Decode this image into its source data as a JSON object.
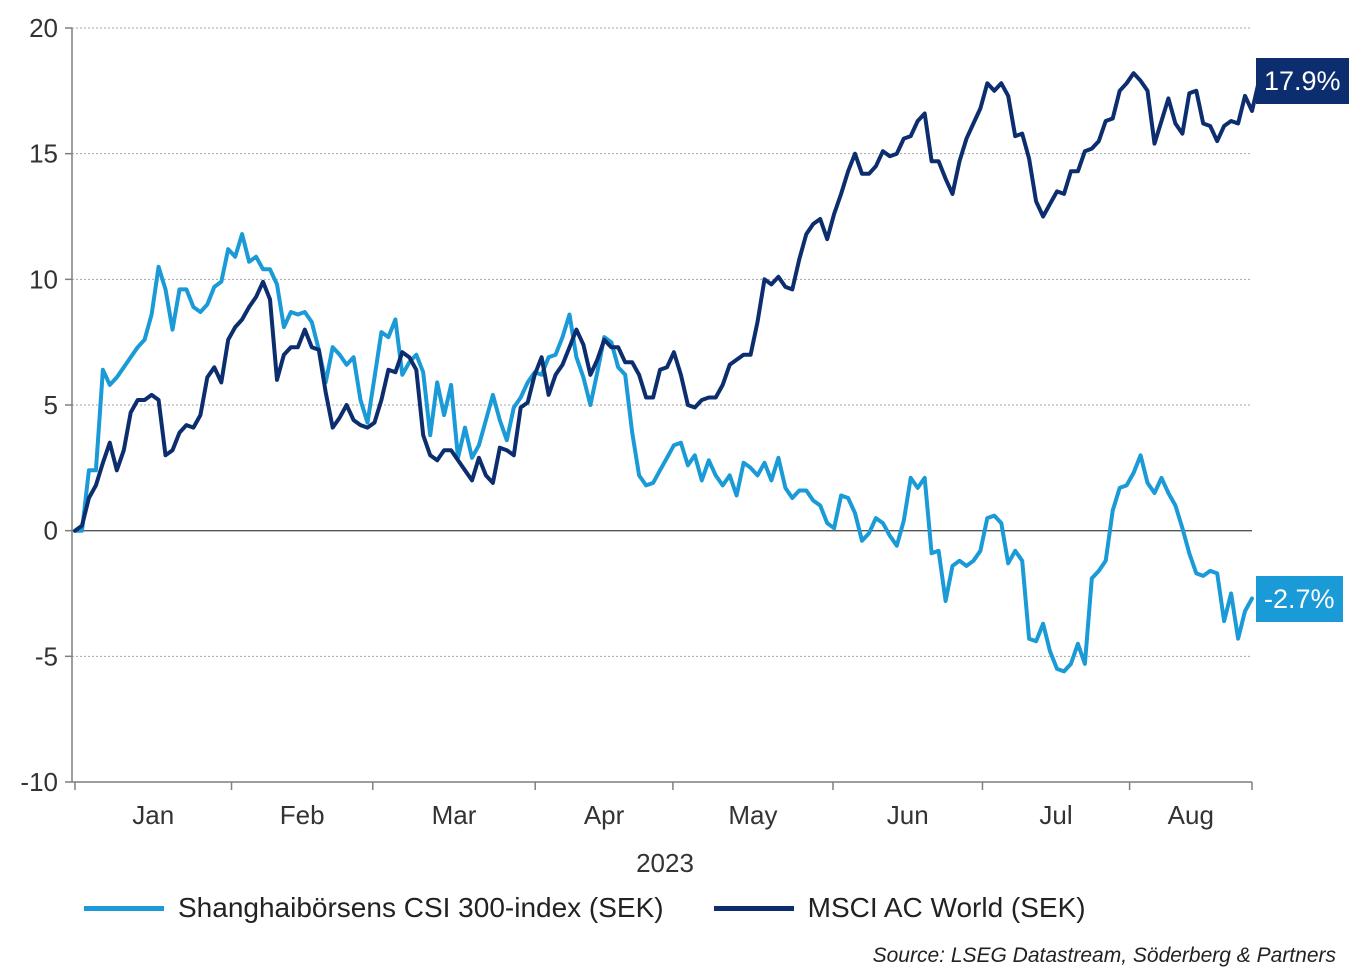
{
  "chart_data": {
    "type": "line",
    "xlabel": "2023",
    "ylabel": "",
    "ylim": [
      -10,
      20
    ],
    "yticks": [
      "-10",
      "-5",
      "0",
      "5",
      "10",
      "15",
      "20"
    ],
    "month_labels": [
      "Jan",
      "Feb",
      "Mar",
      "Apr",
      "May",
      "Jun",
      "Jul",
      "Aug"
    ],
    "grid": "horizontal dotted",
    "legend_position": "bottom",
    "x_unit": "trading day index (2023)",
    "series": [
      {
        "name": "Shanghaibörsens CSI 300-index (SEK)",
        "color": "#1a9ad6",
        "end_label": "-2.7%",
        "values": [
          0,
          0,
          2.4,
          2.4,
          6.4,
          5.8,
          6.1,
          6.5,
          6.9,
          7.3,
          7.6,
          8.6,
          10.5,
          9.6,
          8.0,
          9.6,
          9.6,
          8.9,
          8.7,
          9.0,
          9.7,
          9.9,
          11.2,
          10.9,
          11.8,
          10.7,
          10.9,
          10.4,
          10.4,
          9.8,
          8.1,
          8.7,
          8.6,
          8.7,
          8.3,
          7.2,
          5.9,
          7.3,
          7.0,
          6.6,
          6.9,
          5.2,
          4.3,
          6.1,
          7.9,
          7.7,
          8.4,
          6.2,
          6.7,
          7.0,
          6.3,
          3.8,
          5.9,
          4.6,
          5.8,
          2.9,
          4.1,
          2.9,
          3.4,
          4.4,
          5.4,
          4.4,
          3.6,
          4.9,
          5.3,
          5.9,
          6.3,
          6.2,
          6.9,
          7.0,
          7.7,
          8.6,
          6.9,
          6.1,
          5.0,
          6.3,
          7.7,
          7.5,
          6.5,
          6.2,
          3.9,
          2.2,
          1.8,
          1.9,
          2.4,
          2.9,
          3.4,
          3.5,
          2.6,
          3.0,
          2.0,
          2.8,
          2.2,
          1.8,
          2.2,
          1.4,
          2.7,
          2.5,
          2.2,
          2.7,
          2.0,
          2.9,
          1.7,
          1.3,
          1.6,
          1.6,
          1.2,
          1.0,
          0.3,
          0.1,
          1.4,
          1.3,
          0.7,
          -0.4,
          -0.1,
          0.5,
          0.3,
          -0.2,
          -0.6,
          0.4,
          2.1,
          1.7,
          2.1,
          -0.9,
          -0.8,
          -2.8,
          -1.4,
          -1.2,
          -1.4,
          -1.2,
          -0.8,
          0.5,
          0.6,
          0.3,
          -1.3,
          -0.8,
          -1.2,
          -4.3,
          -4.4,
          -3.7,
          -4.8,
          -5.5,
          -5.6,
          -5.3,
          -4.5,
          -5.3,
          -1.9,
          -1.6,
          -1.2,
          0.8,
          1.7,
          1.8,
          2.3,
          3.0,
          1.9,
          1.5,
          2.1,
          1.5,
          1.0,
          0.1,
          -0.9,
          -1.7,
          -1.8,
          -1.6,
          -1.7,
          -3.6,
          -2.5,
          -4.3,
          -3.2,
          -2.7
        ]
      },
      {
        "name": "MSCI AC World (SEK)",
        "color": "#0c2d6e",
        "end_label": "17.9%",
        "values": [
          0,
          0.2,
          1.3,
          1.8,
          2.7,
          3.5,
          2.4,
          3.2,
          4.7,
          5.2,
          5.2,
          5.4,
          5.2,
          3.0,
          3.2,
          3.9,
          4.2,
          4.1,
          4.6,
          6.1,
          6.5,
          5.9,
          7.6,
          8.1,
          8.4,
          8.9,
          9.3,
          9.9,
          9.2,
          6.0,
          7.0,
          7.3,
          7.3,
          8.0,
          7.3,
          7.2,
          5.5,
          4.1,
          4.5,
          5.0,
          4.4,
          4.2,
          4.1,
          4.3,
          5.2,
          6.4,
          6.3,
          7.1,
          6.9,
          6.4,
          3.8,
          3.0,
          2.8,
          3.2,
          3.2,
          2.8,
          2.4,
          2.0,
          2.9,
          2.2,
          1.9,
          3.3,
          3.2,
          3.0,
          4.9,
          5.1,
          6.2,
          6.9,
          5.4,
          6.2,
          6.6,
          7.3,
          8.0,
          7.4,
          6.2,
          6.8,
          7.6,
          7.3,
          7.3,
          6.7,
          6.7,
          6.2,
          5.3,
          5.3,
          6.4,
          6.5,
          7.1,
          6.2,
          5.0,
          4.9,
          5.2,
          5.3,
          5.3,
          5.8,
          6.6,
          6.8,
          7.0,
          7.0,
          8.3,
          10.0,
          9.8,
          10.1,
          9.7,
          9.6,
          10.8,
          11.8,
          12.2,
          12.4,
          11.6,
          12.6,
          13.4,
          14.3,
          15.0,
          14.2,
          14.2,
          14.5,
          15.1,
          14.9,
          15.0,
          15.6,
          15.7,
          16.3,
          16.6,
          14.7,
          14.7,
          14.0,
          13.4,
          14.7,
          15.6,
          16.2,
          16.8,
          17.8,
          17.5,
          17.8,
          17.3,
          15.7,
          15.8,
          14.8,
          13.1,
          12.5,
          13.0,
          13.5,
          13.4,
          14.3,
          14.3,
          15.1,
          15.2,
          15.5,
          16.3,
          16.4,
          17.5,
          17.8,
          18.2,
          17.9,
          17.5,
          15.4,
          16.3,
          17.2,
          16.2,
          15.8,
          17.4,
          17.5,
          16.2,
          16.1,
          15.5,
          16.1,
          16.3,
          16.2,
          17.3,
          16.7,
          17.9
        ]
      }
    ]
  },
  "legend": {
    "series1_label": "Shanghaibörsens CSI 300-index (SEK)",
    "series2_label": "MSCI AC World (SEK)"
  },
  "source": "Source: LSEG Datastream, Söderberg & Partners",
  "end_labels": {
    "csi": "-2.7%",
    "msci": "17.9%"
  },
  "colors": {
    "csi": "#1a9ad6",
    "msci": "#0c2d6e",
    "axis": "#7f7f7f",
    "grid": "#a6a6a6"
  }
}
